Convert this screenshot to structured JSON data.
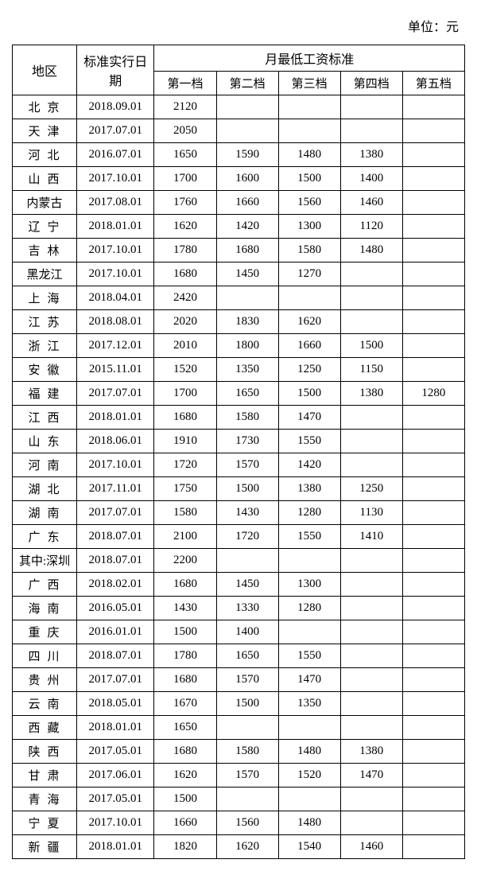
{
  "unit_label": "单位：元",
  "headers": {
    "region": "地区",
    "date": "标准实行日期",
    "monthly_group": "月最低工资标准",
    "tier1": "第一档",
    "tier2": "第二档",
    "tier3": "第三档",
    "tier4": "第四档",
    "tier5": "第五档"
  },
  "rows": [
    {
      "region": "北京",
      "spaced": true,
      "date": "2018.09.01",
      "t1": "2120",
      "t2": "",
      "t3": "",
      "t4": "",
      "t5": ""
    },
    {
      "region": "天津",
      "spaced": true,
      "date": "2017.07.01",
      "t1": "2050",
      "t2": "",
      "t3": "",
      "t4": "",
      "t5": ""
    },
    {
      "region": "河北",
      "spaced": true,
      "date": "2016.07.01",
      "t1": "1650",
      "t2": "1590",
      "t3": "1480",
      "t4": "1380",
      "t5": ""
    },
    {
      "region": "山西",
      "spaced": true,
      "date": "2017.10.01",
      "t1": "1700",
      "t2": "1600",
      "t3": "1500",
      "t4": "1400",
      "t5": ""
    },
    {
      "region": "内蒙古",
      "spaced": false,
      "date": "2017.08.01",
      "t1": "1760",
      "t2": "1660",
      "t3": "1560",
      "t4": "1460",
      "t5": ""
    },
    {
      "region": "辽宁",
      "spaced": true,
      "date": "2018.01.01",
      "t1": "1620",
      "t2": "1420",
      "t3": "1300",
      "t4": "1120",
      "t5": ""
    },
    {
      "region": "吉林",
      "spaced": true,
      "date": "2017.10.01",
      "t1": "1780",
      "t2": "1680",
      "t3": "1580",
      "t4": "1480",
      "t5": ""
    },
    {
      "region": "黑龙江",
      "spaced": false,
      "date": "2017.10.01",
      "t1": "1680",
      "t2": "1450",
      "t3": "1270",
      "t4": "",
      "t5": ""
    },
    {
      "region": "上海",
      "spaced": true,
      "date": "2018.04.01",
      "t1": "2420",
      "t2": "",
      "t3": "",
      "t4": "",
      "t5": ""
    },
    {
      "region": "江苏",
      "spaced": true,
      "date": "2018.08.01",
      "t1": "2020",
      "t2": "1830",
      "t3": "1620",
      "t4": "",
      "t5": ""
    },
    {
      "region": "浙江",
      "spaced": true,
      "date": "2017.12.01",
      "t1": "2010",
      "t2": "1800",
      "t3": "1660",
      "t4": "1500",
      "t5": ""
    },
    {
      "region": "安徽",
      "spaced": true,
      "date": "2015.11.01",
      "t1": "1520",
      "t2": "1350",
      "t3": "1250",
      "t4": "1150",
      "t5": ""
    },
    {
      "region": "福建",
      "spaced": true,
      "date": "2017.07.01",
      "t1": "1700",
      "t2": "1650",
      "t3": "1500",
      "t4": "1380",
      "t5": "1280"
    },
    {
      "region": "江西",
      "spaced": true,
      "date": "2018.01.01",
      "t1": "1680",
      "t2": "1580",
      "t3": "1470",
      "t4": "",
      "t5": ""
    },
    {
      "region": "山东",
      "spaced": true,
      "date": "2018.06.01",
      "t1": "1910",
      "t2": "1730",
      "t3": "1550",
      "t4": "",
      "t5": ""
    },
    {
      "region": "河南",
      "spaced": true,
      "date": "2017.10.01",
      "t1": "1720",
      "t2": "1570",
      "t3": "1420",
      "t4": "",
      "t5": ""
    },
    {
      "region": "湖北",
      "spaced": true,
      "date": "2017.11.01",
      "t1": "1750",
      "t2": "1500",
      "t3": "1380",
      "t4": "1250",
      "t5": ""
    },
    {
      "region": "湖南",
      "spaced": true,
      "date": "2017.07.01",
      "t1": "1580",
      "t2": "1430",
      "t3": "1280",
      "t4": "1130",
      "t5": ""
    },
    {
      "region": "广东",
      "spaced": true,
      "date": "2018.07.01",
      "t1": "2100",
      "t2": "1720",
      "t3": "1550",
      "t4": "1410",
      "t5": ""
    },
    {
      "region": "其中:深圳",
      "spaced": false,
      "date": "2018.07.01",
      "t1": "2200",
      "t2": "",
      "t3": "",
      "t4": "",
      "t5": ""
    },
    {
      "region": "广西",
      "spaced": true,
      "date": "2018.02.01",
      "t1": "1680",
      "t2": "1450",
      "t3": "1300",
      "t4": "",
      "t5": ""
    },
    {
      "region": "海南",
      "spaced": true,
      "date": "2016.05.01",
      "t1": "1430",
      "t2": "1330",
      "t3": "1280",
      "t4": "",
      "t5": ""
    },
    {
      "region": "重庆",
      "spaced": true,
      "date": "2016.01.01",
      "t1": "1500",
      "t2": "1400",
      "t3": "",
      "t4": "",
      "t5": ""
    },
    {
      "region": "四川",
      "spaced": true,
      "date": "2018.07.01",
      "t1": "1780",
      "t2": "1650",
      "t3": "1550",
      "t4": "",
      "t5": ""
    },
    {
      "region": "贵州",
      "spaced": true,
      "date": "2017.07.01",
      "t1": "1680",
      "t2": "1570",
      "t3": "1470",
      "t4": "",
      "t5": ""
    },
    {
      "region": "云南",
      "spaced": true,
      "date": "2018.05.01",
      "t1": "1670",
      "t2": "1500",
      "t3": "1350",
      "t4": "",
      "t5": ""
    },
    {
      "region": "西藏",
      "spaced": true,
      "date": "2018.01.01",
      "t1": "1650",
      "t2": "",
      "t3": "",
      "t4": "",
      "t5": ""
    },
    {
      "region": "陕西",
      "spaced": true,
      "date": "2017.05.01",
      "t1": "1680",
      "t2": "1580",
      "t3": "1480",
      "t4": "1380",
      "t5": ""
    },
    {
      "region": "甘肃",
      "spaced": true,
      "date": "2017.06.01",
      "t1": "1620",
      "t2": "1570",
      "t3": "1520",
      "t4": "1470",
      "t5": ""
    },
    {
      "region": "青海",
      "spaced": true,
      "date": "2017.05.01",
      "t1": "1500",
      "t2": "",
      "t3": "",
      "t4": "",
      "t5": ""
    },
    {
      "region": "宁夏",
      "spaced": true,
      "date": "2017.10.01",
      "t1": "1660",
      "t2": "1560",
      "t3": "1480",
      "t4": "",
      "t5": ""
    },
    {
      "region": "新疆",
      "spaced": true,
      "date": "2018.01.01",
      "t1": "1820",
      "t2": "1620",
      "t3": "1540",
      "t4": "1460",
      "t5": ""
    }
  ],
  "style": {
    "font_family": "SimSun",
    "font_size_pt": 11,
    "border_color": "#000000",
    "background_color": "#ffffff",
    "text_color": "#000000"
  }
}
